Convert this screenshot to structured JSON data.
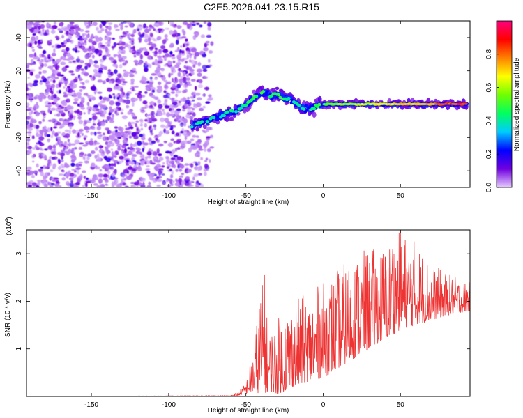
{
  "title": "C2E5.2026.041.23.15.R15",
  "chart_data": [
    {
      "type": "heatmap",
      "xlabel": "Height of straight line (km)",
      "ylabel": "Frequency (Hz)",
      "xlim": [
        -192,
        95
      ],
      "ylim": [
        -50,
        50
      ],
      "x_ticks": [
        -150,
        -100,
        -50,
        0,
        50
      ],
      "y_ticks": [
        -40,
        -20,
        0,
        20,
        40
      ],
      "colorbar": {
        "label": "Normalized spectral amplitude",
        "range": [
          0,
          1
        ],
        "ticks": [
          0.0,
          0.2,
          0.4,
          0.6,
          0.8
        ],
        "colormap": [
          "#e6ccff",
          "#7000e0",
          "#0000ff",
          "#00ccff",
          "#00ff60",
          "#70ff00",
          "#ffff00",
          "#ff8000",
          "#ff0000",
          "#ff0080"
        ]
      },
      "track": {
        "x": [
          -85,
          -78,
          -72,
          -66,
          -60,
          -55,
          -50,
          -46,
          -42,
          -38,
          -34,
          -30,
          -26,
          -22,
          -18,
          -14,
          -10,
          -6,
          -2,
          0,
          10,
          20,
          30,
          40,
          50,
          60,
          70,
          80,
          93
        ],
        "freq": [
          -13,
          -11,
          -9,
          -7,
          -5,
          -3,
          0,
          3,
          6,
          7,
          5,
          6,
          4,
          3,
          1,
          -2,
          -3,
          -2,
          0,
          0,
          0,
          0,
          0,
          0,
          0,
          0,
          0,
          0,
          0
        ],
        "amplitude": [
          0.45,
          0.45,
          0.4,
          0.4,
          0.45,
          0.45,
          0.45,
          0.5,
          0.5,
          0.5,
          0.5,
          0.5,
          0.5,
          0.45,
          0.45,
          0.45,
          0.45,
          0.5,
          0.5,
          0.55,
          0.6,
          0.65,
          0.7,
          0.72,
          0.75,
          0.78,
          0.82,
          0.9,
          0.95
        ]
      },
      "noise_region": {
        "x": [
          -192,
          -72
        ],
        "freq": [
          -50,
          50
        ],
        "amplitude": 0.12
      }
    },
    {
      "type": "line",
      "xlabel": "Height of straight line (km)",
      "ylabel": "SNR (10 * v/v)",
      "y_multiplier": "(x10^4)",
      "xlim": [
        -192,
        95
      ],
      "ylim": [
        0,
        3.5
      ],
      "x_ticks": [
        -150,
        -100,
        -50,
        0,
        50
      ],
      "y_ticks": [
        1,
        2,
        3
      ],
      "series": [
        {
          "color": "#ee3333",
          "envelope_x": [
            -192,
            -60,
            -55,
            -50,
            -45,
            -40,
            -35,
            -30,
            -25,
            -20,
            -10,
            0,
            10,
            20,
            30,
            40,
            50,
            60,
            70,
            80,
            95
          ],
          "envelope_low": [
            0.0,
            0.0,
            0.02,
            0.05,
            0.1,
            0.05,
            0.1,
            0.05,
            0.1,
            0.2,
            0.3,
            0.4,
            0.6,
            0.8,
            1.0,
            1.2,
            1.4,
            1.5,
            1.6,
            1.7,
            1.8
          ],
          "envelope_high": [
            0.0,
            0.02,
            0.1,
            0.3,
            1.0,
            2.55,
            1.4,
            1.6,
            1.9,
            2.0,
            2.2,
            2.4,
            2.7,
            3.0,
            3.1,
            3.2,
            3.5,
            3.3,
            2.8,
            2.6,
            2.4
          ],
          "peaks": [
            {
              "x": -38,
              "y": 2.55
            },
            {
              "x": 50,
              "y": 3.5
            },
            {
              "x": 45,
              "y": 3.1
            }
          ]
        }
      ]
    }
  ]
}
